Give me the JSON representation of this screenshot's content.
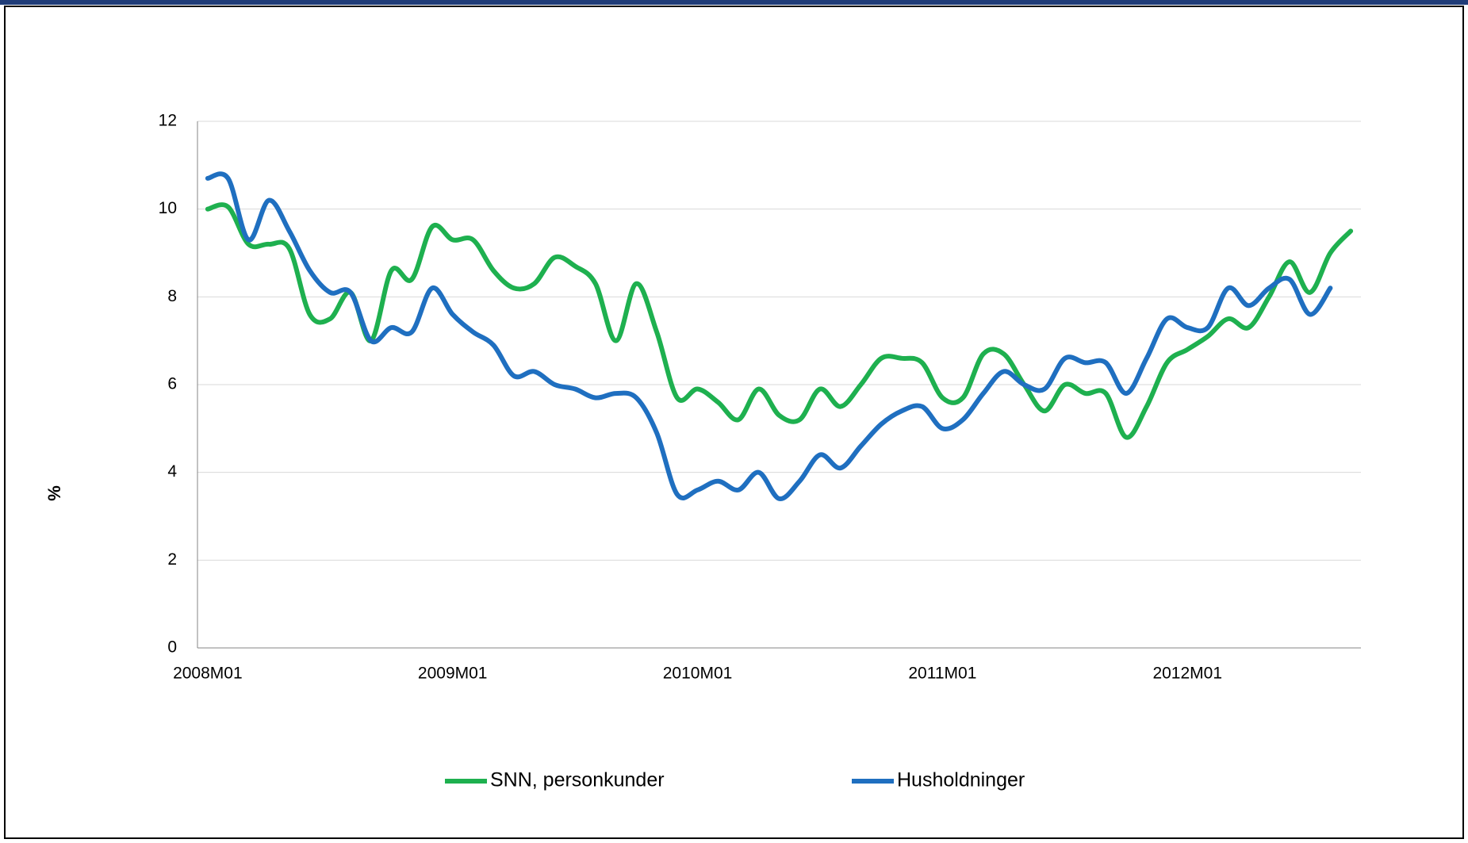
{
  "chart_data": {
    "type": "line",
    "y_label": "%",
    "categories": [
      "2008M01",
      null,
      null,
      null,
      null,
      null,
      null,
      null,
      null,
      null,
      null,
      null,
      "2009M01",
      null,
      null,
      null,
      null,
      null,
      null,
      null,
      null,
      null,
      null,
      null,
      "2010M01",
      null,
      null,
      null,
      null,
      null,
      null,
      null,
      null,
      null,
      null,
      null,
      "2011M01",
      null,
      null,
      null,
      null,
      null,
      null,
      null,
      null,
      null,
      null,
      null,
      "2012M01",
      null,
      null,
      null,
      null,
      null,
      null,
      null,
      null
    ],
    "series": [
      {
        "name": "SNN, personkunder",
        "color": "#1eb04f",
        "values": [
          10.0,
          10.05,
          9.2,
          9.2,
          9.1,
          7.6,
          7.5,
          8.1,
          7.0,
          8.6,
          8.4,
          9.6,
          9.3,
          9.3,
          8.6,
          8.2,
          8.3,
          8.9,
          8.7,
          8.3,
          7.0,
          8.3,
          7.2,
          5.7,
          5.9,
          5.6,
          5.2,
          5.9,
          5.3,
          5.2,
          5.9,
          5.5,
          6.0,
          6.6,
          6.6,
          6.5,
          5.7,
          5.7,
          6.7,
          6.7,
          6.0,
          5.4,
          6.0,
          5.8,
          5.8,
          4.8,
          5.5,
          6.5,
          6.8,
          7.1,
          7.5,
          7.3,
          8.0,
          8.8,
          8.1,
          9.0,
          9.5
        ]
      },
      {
        "name": "Husholdninger",
        "color": "#1f6fc0",
        "values": [
          10.7,
          10.7,
          9.3,
          10.2,
          9.5,
          8.6,
          8.1,
          8.1,
          7.0,
          7.3,
          7.2,
          8.2,
          7.6,
          7.2,
          6.9,
          6.2,
          6.3,
          6.0,
          5.9,
          5.7,
          5.8,
          5.7,
          4.9,
          3.5,
          3.6,
          3.8,
          3.6,
          4.0,
          3.4,
          3.8,
          4.4,
          4.1,
          4.6,
          5.1,
          5.4,
          5.5,
          5.0,
          5.2,
          5.8,
          6.3,
          6.0,
          5.9,
          6.6,
          6.5,
          6.5,
          5.8,
          6.6,
          7.5,
          7.3,
          7.3,
          8.2,
          7.8,
          8.2,
          8.4,
          7.6,
          8.2,
          null
        ]
      }
    ],
    "ylim": [
      0,
      12
    ],
    "yticks": [
      0,
      2,
      4,
      6,
      8,
      10,
      12
    ],
    "grid": true,
    "legend": "bottom"
  }
}
